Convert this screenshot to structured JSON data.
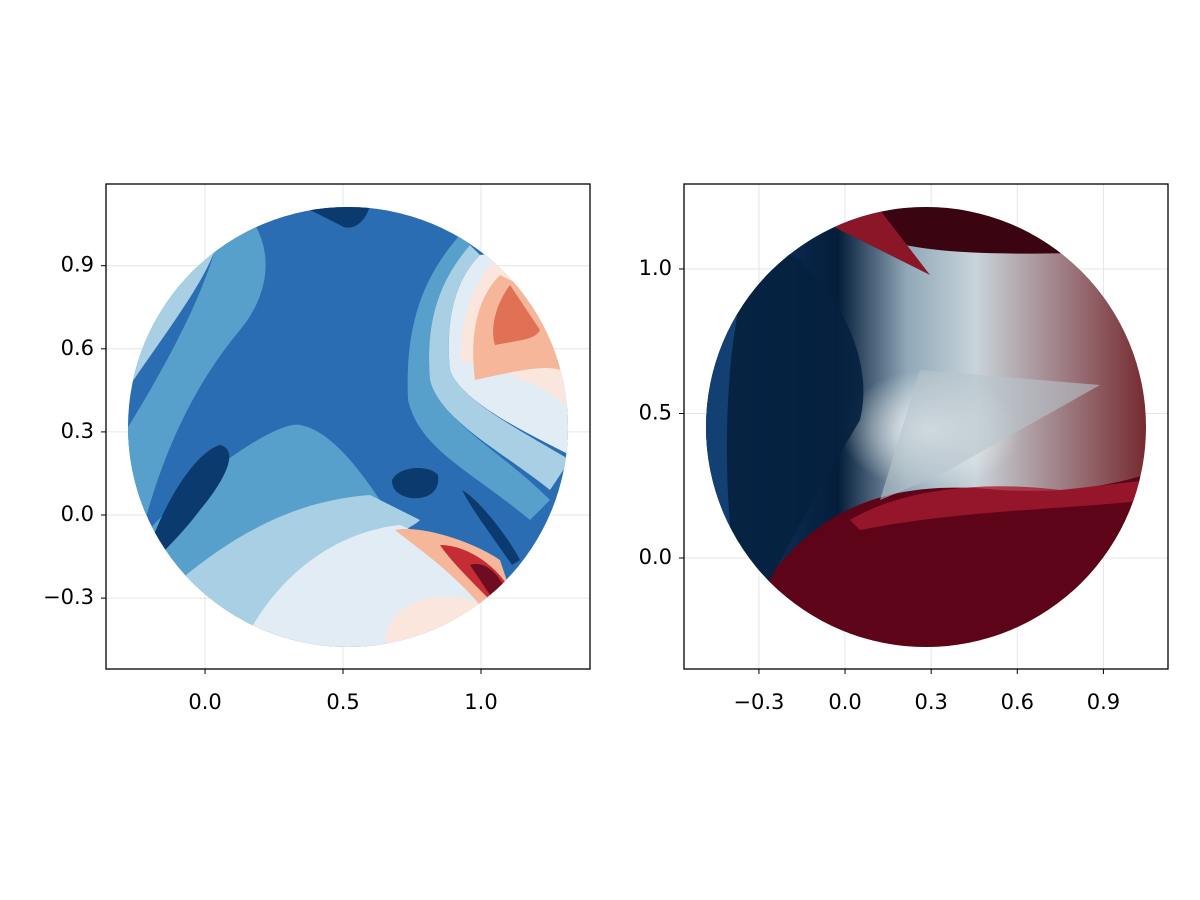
{
  "chart_data": [
    {
      "type": "contour",
      "grid": true,
      "xlim": [
        -0.359,
        1.395
      ],
      "ylim": [
        -0.556,
        1.195
      ],
      "xticks": [
        {
          "value": 0,
          "label": "0.0"
        },
        0.5,
        {
          "value": 1,
          "label": "1.0"
        }
      ],
      "yticks": [
        {
          "value": -0.3,
          "label": "−0.3"
        },
        {
          "value": 0,
          "label": "0.0"
        },
        0.3,
        0.6,
        0.9
      ]
    },
    {
      "type": "heatmap",
      "grid": true,
      "xlim": [
        -0.561,
        1.125
      ],
      "ylim": [
        -0.384,
        1.294
      ],
      "xticks": [
        {
          "value": -0.3,
          "label": "−0.3"
        },
        {
          "value": 0,
          "label": "0.0"
        },
        0.3,
        0.6,
        0.9
      ],
      "yticks": [
        {
          "value": 0,
          "label": "0.0"
        },
        0.5,
        {
          "value": 1,
          "label": "1.0"
        }
      ]
    }
  ]
}
